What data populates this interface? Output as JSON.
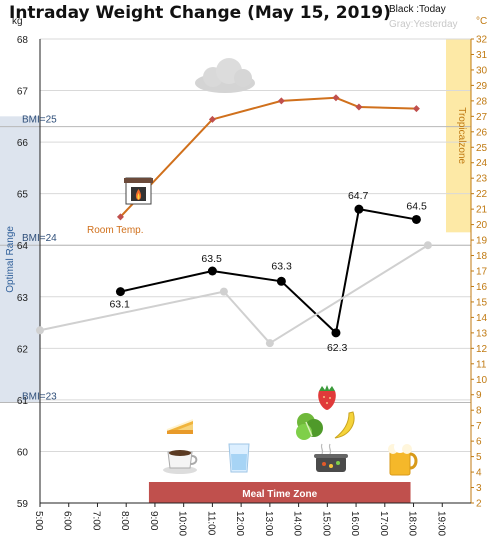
{
  "chart_data": {
    "type": "line",
    "title": "Intraday Weight Change (May 15, 2019)",
    "legend": {
      "today": "Black :Today",
      "yesterday": "Gray:Yesterday"
    },
    "left_unit": "kg",
    "right_unit": "°C",
    "x_ticks": [
      "5:00",
      "6:00",
      "7:00",
      "8:00",
      "9:00",
      "10:00",
      "11:00",
      "12:00",
      "13:00",
      "14:00",
      "15:00",
      "16:00",
      "17:00",
      "18:00",
      "19:00"
    ],
    "xlim": [
      5,
      20
    ],
    "ylim_left": [
      59,
      68
    ],
    "ylim_right": [
      2,
      32
    ],
    "series": [
      {
        "name": "Today",
        "color": "#000000",
        "x": [
          7.8,
          11.0,
          13.4,
          15.3,
          16.1,
          18.1
        ],
        "values": [
          63.1,
          63.5,
          63.3,
          62.3,
          64.7,
          64.5
        ],
        "labels": [
          "63.1",
          "63.5",
          "63.3",
          "62.3",
          "64.7",
          "64.5"
        ]
      },
      {
        "name": "Yesterday",
        "color": "#d0d0d0",
        "x": [
          5.0,
          11.4,
          13.0,
          18.5
        ],
        "values": [
          62.35,
          63.1,
          62.1,
          64.0
        ]
      },
      {
        "name": "Room Temp.",
        "color": "#d0701c",
        "axis": "right",
        "x": [
          7.8,
          11.0,
          13.4,
          15.3,
          16.1,
          18.1
        ],
        "values": [
          20.5,
          26.8,
          28.0,
          28.2,
          27.6,
          27.5
        ]
      }
    ],
    "annotations": {
      "room_temp": "Room Temp.",
      "bmi_25": "BMI=25",
      "bmi_24": "BMI=24",
      "bmi_23": "BMI=23",
      "optimal_range": "Optimal Range",
      "tropical_zone": "Tropicalzone",
      "meal_time_zone": "Meal Time Zone"
    },
    "bands": {
      "optimal_range_kg": [
        60.95,
        66.5
      ],
      "tropical_zone_c": [
        19.5,
        32
      ],
      "meal_time_zone_hours": [
        9.0,
        18.0
      ]
    },
    "bmi_lines_kg": [
      66.3,
      64.0,
      60.95
    ],
    "icons": [
      "cloud-icon",
      "fireplace-icon",
      "cake-icon",
      "coffee-icon",
      "water-glass-icon",
      "strawberry-icon",
      "lettuce-icon",
      "banana-icon",
      "cooking-pot-icon",
      "beer-icon"
    ],
    "grid": true,
    "colors": {
      "today": "#000000",
      "yesterday": "#d0d0d0",
      "room_temp": "#d0701c",
      "tropical": "#fde9a6",
      "optimal": "#dde4ee",
      "meal": "#c0504d"
    }
  }
}
